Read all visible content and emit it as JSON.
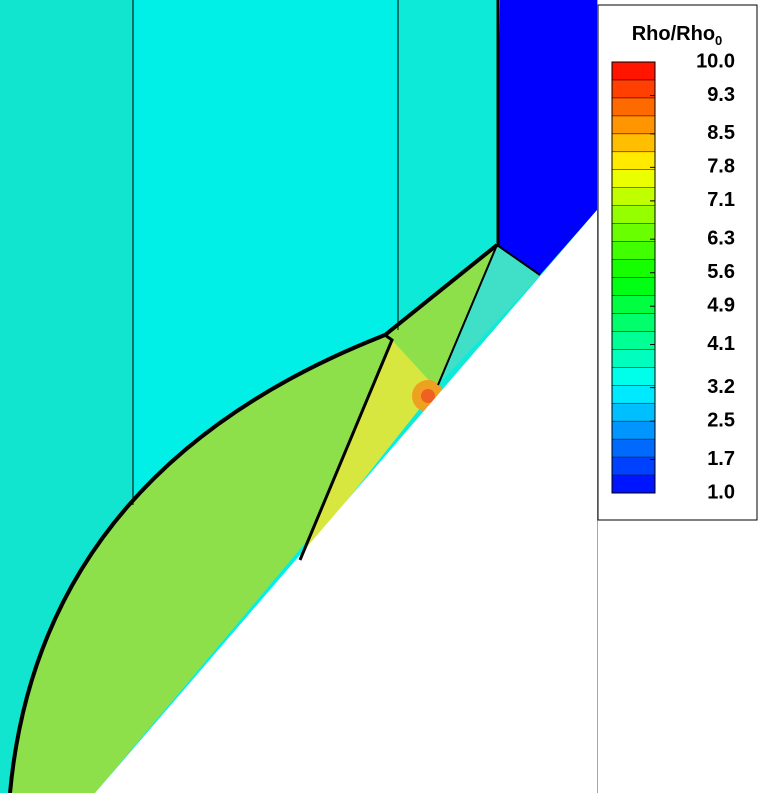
{
  "chart_data": {
    "type": "contour",
    "colorbar": {
      "title": "Rho/Rho",
      "title_subscript": "0",
      "lim": [
        1,
        10
      ],
      "ticks": [
        {
          "value": 10,
          "label": "10.0"
        },
        9.3,
        8.5,
        7.8,
        7.1,
        6.3,
        5.6,
        4.9,
        4.1,
        3.2,
        2.5,
        1.7,
        {
          "value": 1,
          "label": "1.0"
        }
      ],
      "colormap": [
        "#0000ff",
        "#00ffff",
        "#00ff00",
        "#ffff00",
        "#ff0000"
      ]
    }
  }
}
